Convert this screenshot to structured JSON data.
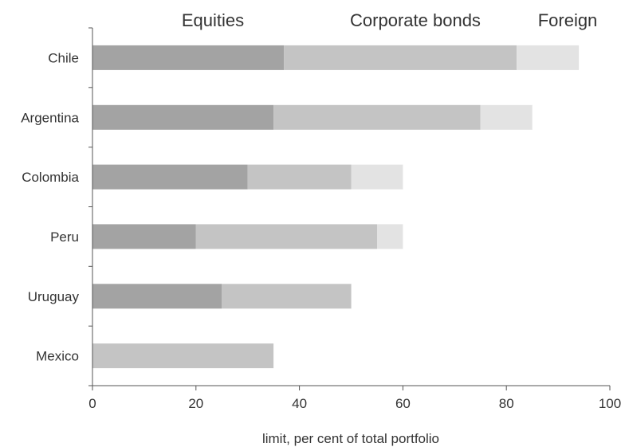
{
  "chart_data": {
    "type": "bar",
    "orientation": "horizontal",
    "stacked": true,
    "title": "",
    "xlabel": "limit, per cent of total portfolio",
    "ylabel": "",
    "xlim": [
      0,
      100
    ],
    "xticks": [
      "0",
      "20",
      "40",
      "60",
      "80",
      "100"
    ],
    "grid": false,
    "legend_position": "top",
    "categories": [
      "Chile",
      "Argentina",
      "Colombia",
      "Peru",
      "Uruguay",
      "Mexico"
    ],
    "series": [
      {
        "name": "Equities",
        "color": "#a3a3a3",
        "values": [
          37,
          35,
          30,
          20,
          25,
          0
        ]
      },
      {
        "name": "Corporate bonds",
        "color": "#c4c4c4",
        "values": [
          45,
          40,
          20,
          35,
          25,
          35
        ]
      },
      {
        "name": "Foreign",
        "color": "#e3e3e3",
        "values": [
          12,
          10,
          10,
          5,
          0,
          0
        ]
      }
    ]
  }
}
